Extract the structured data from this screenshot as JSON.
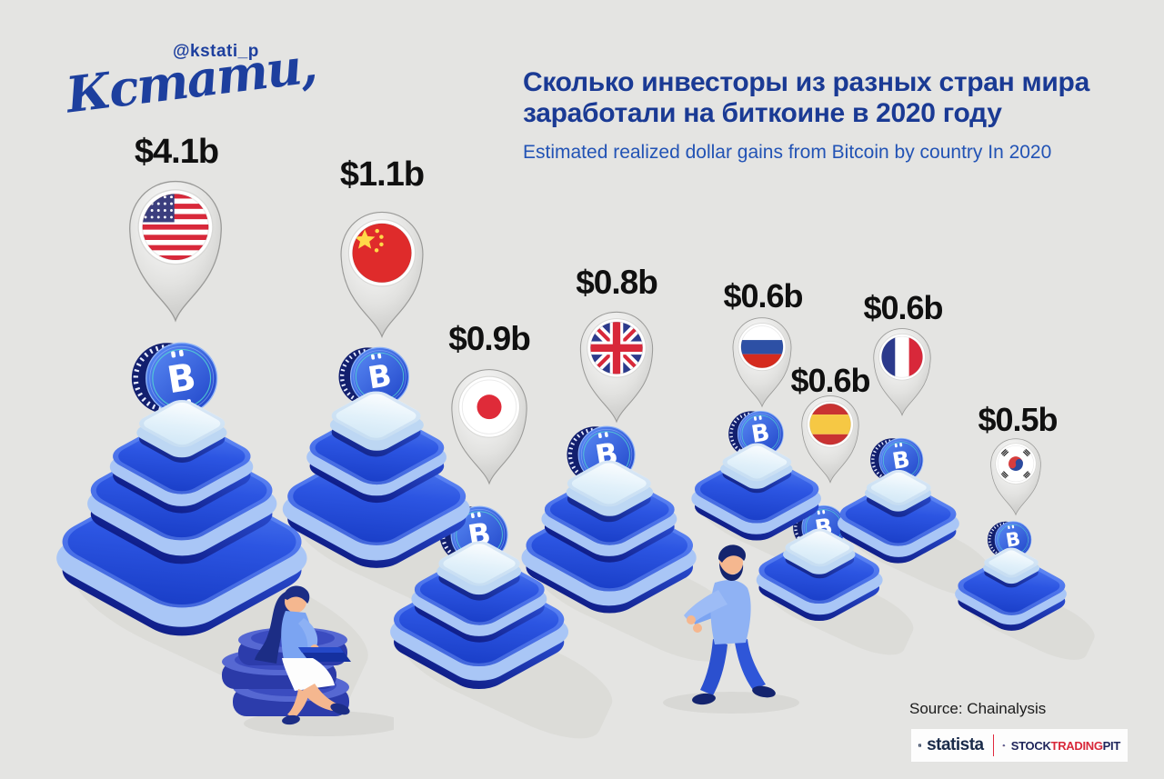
{
  "page": {
    "background": "#e4e4e2"
  },
  "header": {
    "handle": "@kstati_p",
    "logo_script": "Кстати,",
    "title_line1": "Сколько инвесторы из разных стран мира",
    "title_line2": "заработали на биткоине в 2020 году",
    "subtitle": "Estimated realized dollar gains from Bitcoin by country In 2020"
  },
  "countries": [
    {
      "name": "United States",
      "flag": "us",
      "label": "$4.1b",
      "value": 4.1,
      "levels": 4
    },
    {
      "name": "China",
      "flag": "cn",
      "label": "$1.1b",
      "value": 1.1,
      "levels": 3
    },
    {
      "name": "Japan",
      "flag": "jp",
      "label": "$0.9b",
      "value": 0.9,
      "levels": 3
    },
    {
      "name": "United Kingdom",
      "flag": "gb",
      "label": "$0.8b",
      "value": 0.8,
      "levels": 3
    },
    {
      "name": "Russia",
      "flag": "ru",
      "label": "$0.6b",
      "value": 0.6,
      "levels": 2
    },
    {
      "name": "Spain",
      "flag": "es",
      "label": "$0.6b",
      "value": 0.6,
      "levels": 2
    },
    {
      "name": "France",
      "flag": "fr",
      "label": "$0.6b",
      "value": 0.6,
      "levels": 2
    },
    {
      "name": "South Korea",
      "flag": "kr",
      "label": "$0.5b",
      "value": 0.5,
      "levels": 2
    }
  ],
  "chart_data": {
    "type": "bar",
    "style": "isometric pictorial pyramids with flag map-pins and bitcoin coins",
    "title": "Сколько инвесторы из разных стран мира заработали на биткоине в 2020 году",
    "subtitle": "Estimated realized dollar gains from Bitcoin by country In 2020",
    "unit": "billions USD",
    "categories": [
      "United States",
      "China",
      "Japan",
      "United Kingdom",
      "Russia",
      "Spain",
      "France",
      "South Korea"
    ],
    "values": [
      4.1,
      1.1,
      0.9,
      0.8,
      0.6,
      0.6,
      0.6,
      0.5
    ],
    "value_labels": [
      "$4.1b",
      "$1.1b",
      "$0.9b",
      "$0.8b",
      "$0.6b",
      "$0.6b",
      "$0.6b",
      "$0.5b"
    ],
    "legend": null,
    "grid": false,
    "source": "Chainalysis"
  },
  "footer": {
    "source": "Source: Chainalysis",
    "statista": "statista",
    "stock": "STOCK",
    "trading": "TRADING",
    "pit": "PIT"
  },
  "colors": {
    "background": "#e4e4e2",
    "title_blue": "#1a3a94",
    "subtitle_blue": "#2253b5",
    "pyramid_blue": "#2c55e2",
    "pyramid_navy": "#16309e",
    "pyramid_light": "#a9c6f6",
    "label_black": "#101010",
    "pin_gray": "#d9d9d7",
    "logo_red": "#e0293d"
  }
}
